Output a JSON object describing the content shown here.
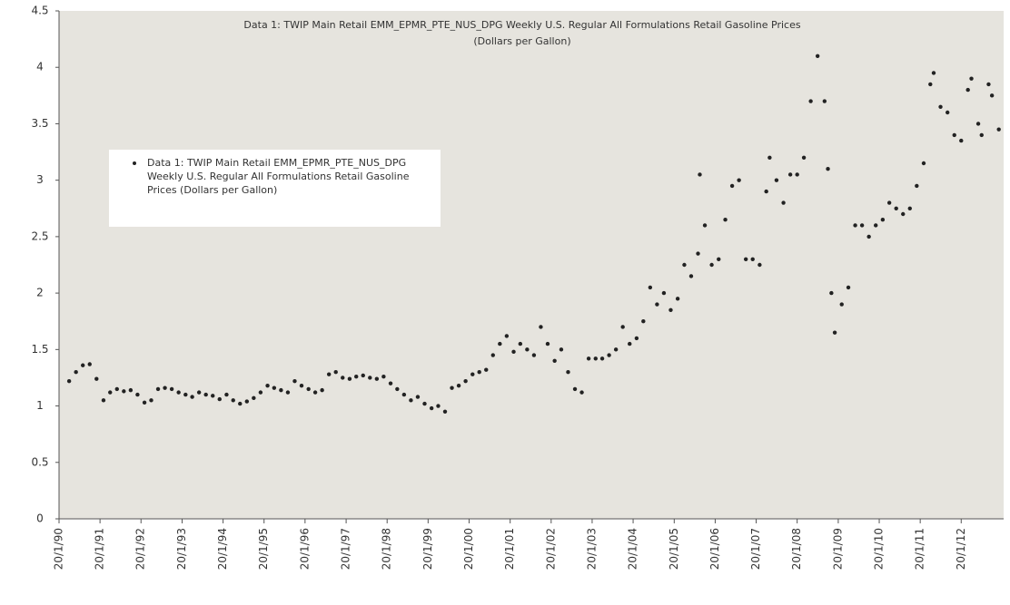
{
  "chart_data": {
    "type": "scatter",
    "title": "Data 1: TWIP Main Retail EMM_EPMR_PTE_NUS_DPG Weekly U.S. Regular All Formulations Retail Gasoline Prices",
    "subtitle": "(Dollars per Gallon)",
    "legend_position": "upper left",
    "grid": false,
    "xlim": [
      "20/1/90",
      "1/2/13"
    ],
    "xticks": [
      "20/1/90",
      "20/1/91",
      "20/1/92",
      "20/1/93",
      "20/1/94",
      "20/1/95",
      "20/1/96",
      "20/1/97",
      "20/1/98",
      "20/1/99",
      "20/1/00",
      "20/1/01",
      "20/1/02",
      "20/1/03",
      "20/1/04",
      "20/1/05",
      "20/1/06",
      "20/1/07",
      "20/1/08",
      "20/1/09",
      "20/1/10",
      "20/1/11",
      "20/1/12"
    ],
    "ylim": [
      0,
      4.5
    ],
    "yticks": [
      0,
      0.5,
      1,
      1.5,
      2,
      2.5,
      3,
      3.5,
      4,
      4.5
    ],
    "series": [
      {
        "name": "Data 1: TWIP Main Retail EMM_EPMR_PTE_NUS_DPG Weekly U.S. Regular All Formulations Retail Gasoline Prices  (Dollars per Gallon)",
        "color": "#222222",
        "x": [
          "20/4/90",
          "20/6/90",
          "20/8/90",
          "20/10/90",
          "20/12/90",
          "20/2/91",
          "20/4/91",
          "20/6/91",
          "20/8/91",
          "20/10/91",
          "20/12/91",
          "20/2/92",
          "20/4/92",
          "20/6/92",
          "20/8/92",
          "20/10/92",
          "20/12/92",
          "20/2/93",
          "20/4/93",
          "20/6/93",
          "20/8/93",
          "20/10/93",
          "20/12/93",
          "20/2/94",
          "20/4/94",
          "20/6/94",
          "20/8/94",
          "20/10/94",
          "20/12/94",
          "20/2/95",
          "20/4/95",
          "20/6/95",
          "20/8/95",
          "20/10/95",
          "20/12/95",
          "20/2/96",
          "20/4/96",
          "20/6/96",
          "20/8/96",
          "20/10/96",
          "20/12/96",
          "20/2/97",
          "20/4/97",
          "20/6/97",
          "20/8/97",
          "20/10/97",
          "20/12/97",
          "20/2/98",
          "20/4/98",
          "20/6/98",
          "20/8/98",
          "20/10/98",
          "20/12/98",
          "20/2/99",
          "20/4/99",
          "20/6/99",
          "20/8/99",
          "20/10/99",
          "20/12/99",
          "20/2/00",
          "20/4/00",
          "20/6/00",
          "20/8/00",
          "20/10/00",
          "20/12/00",
          "20/2/01",
          "20/4/01",
          "20/6/01",
          "20/8/01",
          "20/10/01",
          "20/12/01",
          "20/2/02",
          "20/4/02",
          "20/6/02",
          "20/8/02",
          "20/10/02",
          "20/12/02",
          "20/2/03",
          "20/4/03",
          "20/6/03",
          "20/8/03",
          "20/10/03",
          "20/12/03",
          "20/2/04",
          "20/4/04",
          "20/6/04",
          "20/8/04",
          "20/10/04",
          "20/12/04",
          "20/2/05",
          "20/4/05",
          "20/6/05",
          "20/8/05",
          "5/9/05",
          "20/10/05",
          "20/12/05",
          "20/2/06",
          "20/4/06",
          "20/6/06",
          "20/8/06",
          "20/10/06",
          "20/12/06",
          "20/2/07",
          "20/4/07",
          "20/5/07",
          "20/7/07",
          "20/9/07",
          "20/11/07",
          "20/1/08",
          "20/3/08",
          "20/5/08",
          "20/7/08",
          "20/9/08",
          "20/10/08",
          "20/11/08",
          "20/12/08",
          "20/2/09",
          "20/4/09",
          "20/6/09",
          "20/8/09",
          "20/10/09",
          "20/12/09",
          "20/2/10",
          "20/4/10",
          "20/6/10",
          "20/8/10",
          "20/10/10",
          "20/12/10",
          "20/2/11",
          "20/4/11",
          "20/5/11",
          "20/7/11",
          "20/9/11",
          "20/11/11",
          "20/1/12",
          "20/3/12",
          "20/4/12",
          "20/6/12",
          "20/7/12",
          "20/9/12",
          "20/10/12",
          "20/12/12"
        ],
        "values": [
          1.22,
          1.3,
          1.36,
          1.37,
          1.24,
          1.05,
          1.12,
          1.15,
          1.13,
          1.14,
          1.1,
          1.03,
          1.05,
          1.15,
          1.16,
          1.15,
          1.12,
          1.1,
          1.08,
          1.12,
          1.1,
          1.09,
          1.06,
          1.1,
          1.05,
          1.02,
          1.04,
          1.07,
          1.12,
          1.18,
          1.16,
          1.14,
          1.12,
          1.22,
          1.18,
          1.15,
          1.12,
          1.14,
          1.28,
          1.3,
          1.25,
          1.24,
          1.26,
          1.27,
          1.25,
          1.24,
          1.26,
          1.2,
          1.15,
          1.1,
          1.05,
          1.08,
          1.02,
          0.98,
          1.0,
          0.95,
          1.16,
          1.18,
          1.22,
          1.28,
          1.3,
          1.32,
          1.45,
          1.55,
          1.62,
          1.48,
          1.55,
          1.5,
          1.45,
          1.7,
          1.55,
          1.4,
          1.5,
          1.3,
          1.15,
          1.12,
          1.42,
          1.42,
          1.42,
          1.45,
          1.5,
          1.7,
          1.55,
          1.6,
          1.75,
          2.05,
          1.9,
          2.0,
          1.85,
          1.95,
          2.25,
          2.15,
          2.35,
          3.05,
          2.6,
          2.25,
          2.3,
          2.65,
          2.95,
          3.0,
          2.3,
          2.3,
          2.25,
          2.9,
          3.2,
          3.0,
          2.8,
          3.05,
          3.05,
          3.2,
          3.7,
          4.1,
          3.7,
          3.1,
          2.0,
          1.65,
          1.9,
          2.05,
          2.6,
          2.6,
          2.5,
          2.6,
          2.65,
          2.8,
          2.75,
          2.7,
          2.75,
          2.95,
          3.15,
          3.85,
          3.95,
          3.65,
          3.6,
          3.4,
          3.35,
          3.8,
          3.9,
          3.5,
          3.4,
          3.85,
          3.75,
          3.45
        ]
      }
    ]
  }
}
